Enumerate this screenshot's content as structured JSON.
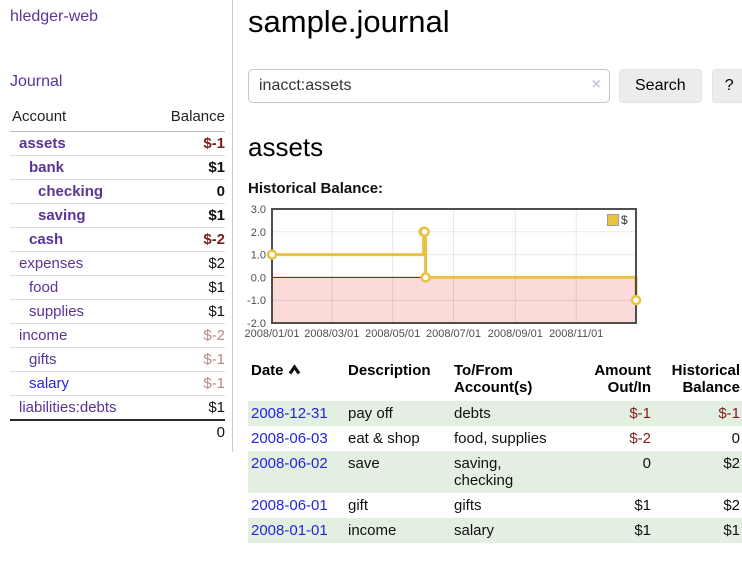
{
  "app": {
    "title_link": "hledger-web"
  },
  "sidebar": {
    "nav_journal": "Journal",
    "accounts": {
      "col_account": "Account",
      "col_balance": "Balance",
      "rows": [
        {
          "name": "assets",
          "indent": 1,
          "bold": true,
          "balance": "$-1",
          "neg": "strong"
        },
        {
          "name": "bank",
          "indent": 2,
          "bold": true,
          "balance": "$1",
          "neg": "none"
        },
        {
          "name": "checking",
          "indent": 3,
          "bold": true,
          "balance": "0",
          "neg": "none"
        },
        {
          "name": "saving",
          "indent": 3,
          "bold": true,
          "balance": "$1",
          "neg": "none"
        },
        {
          "name": "cash",
          "indent": 2,
          "bold": true,
          "balance": "$-2",
          "neg": "strong"
        },
        {
          "name": "expenses",
          "indent": 1,
          "bold": false,
          "balance": "$2",
          "neg": "none"
        },
        {
          "name": "food",
          "indent": 2,
          "bold": false,
          "balance": "$1",
          "neg": "none"
        },
        {
          "name": "supplies",
          "indent": 2,
          "bold": false,
          "balance": "$1",
          "neg": "none"
        },
        {
          "name": "income",
          "indent": 1,
          "bold": false,
          "balance": "$-2",
          "neg": "muted"
        },
        {
          "name": "gifts",
          "indent": 2,
          "bold": false,
          "balance": "$-1",
          "neg": "muted"
        },
        {
          "name": "salary",
          "indent": 2,
          "bold": false,
          "balance": "$-1",
          "neg": "muted",
          "unvisited": true
        },
        {
          "name": "liabilities:debts",
          "indent": 1,
          "bold": false,
          "balance": "$1",
          "neg": "none"
        }
      ],
      "total": "0"
    }
  },
  "main": {
    "title": "sample.journal",
    "search": {
      "value": "inacct:assets",
      "clear": "×",
      "button": "Search",
      "help": "?"
    },
    "heading": "assets",
    "chart_label": "Historical Balance:",
    "table": {
      "headers": {
        "date": "Date",
        "description": "Description",
        "accounts": "To/From\nAccount(s)",
        "amount": "Amount\nOut/In",
        "balance": "Historical\nBalance"
      },
      "sort": {
        "column": "Date",
        "direction": "ascending"
      },
      "rows": [
        {
          "date": "2008-12-31",
          "description": "pay off",
          "accounts": "debts",
          "amount": "$-1",
          "balance": "$-1"
        },
        {
          "date": "2008-06-03",
          "description": "eat & shop",
          "accounts": "food, supplies",
          "amount": "$-2",
          "balance": "0"
        },
        {
          "date": "2008-06-02",
          "description": "save",
          "accounts": "saving,\nchecking",
          "amount": "0",
          "balance": "$2"
        },
        {
          "date": "2008-06-01",
          "description": "gift",
          "accounts": "gifts",
          "amount": "$1",
          "balance": "$2"
        },
        {
          "date": "2008-01-01",
          "description": "income",
          "accounts": "salary",
          "amount": "$1",
          "balance": "$1"
        }
      ]
    }
  },
  "chart_data": {
    "type": "line",
    "title": "Historical Balance",
    "style": "step-after",
    "series": [
      {
        "name": "$",
        "color": "#e8c240",
        "points": [
          [
            "2008-01-01",
            1
          ],
          [
            "2008-06-01",
            2
          ],
          [
            "2008-06-02",
            2
          ],
          [
            "2008-06-03",
            0
          ],
          [
            "2008-12-31",
            -1
          ]
        ]
      }
    ],
    "x_range": [
      "2008-01-01",
      "2008-12-31"
    ],
    "x_ticks": [
      "2008/01/01",
      "2008/03/01",
      "2008/05/01",
      "2008/07/01",
      "2008/09/01",
      "2008/11/01"
    ],
    "y_ticks": [
      3.0,
      2.0,
      1.0,
      0.0,
      -1.0,
      -2.0
    ],
    "ylim": [
      -2,
      3
    ],
    "grid": true,
    "legend_position": "top-right",
    "negative_region_color": "#fbdada",
    "zero_line_color": "#8b0000"
  },
  "colors": {
    "link_purple": "#5a3399",
    "link_blue": "#2424dd",
    "negative_strong": "#7f1d1d",
    "negative_muted": "#b98a8a",
    "row_stripe_green": "#e3efe0",
    "series_gold": "#e8c240"
  }
}
